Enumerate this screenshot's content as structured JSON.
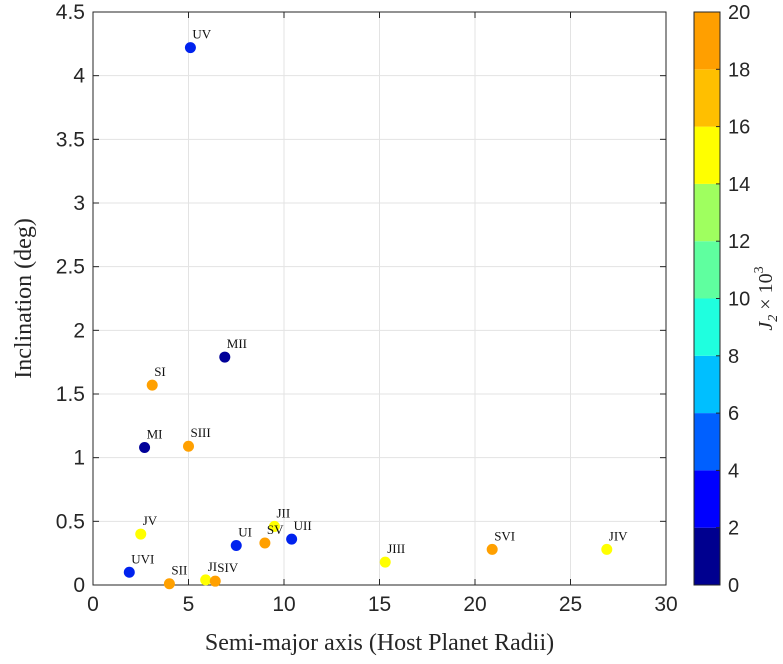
{
  "chart_data": {
    "type": "scatter",
    "xlabel": "Semi-major axis (Host Planet Radii)",
    "ylabel": "Inclination (deg)",
    "xlim": [
      0,
      30
    ],
    "ylim": [
      0,
      4.5
    ],
    "xticks": [
      "0",
      "5",
      "10",
      "15",
      "20",
      "25",
      "30"
    ],
    "yticks": [
      "0",
      "0.5",
      "1",
      "1.5",
      "2",
      "2.5",
      "3",
      "3.5",
      "4",
      "4.5"
    ],
    "grid": true,
    "colorbar": {
      "label_base": "J",
      "label_sub": "2",
      "label_times": " × 10",
      "label_sup": "3",
      "range": [
        0,
        20
      ],
      "ticks": [
        "0",
        "2",
        "4",
        "6",
        "8",
        "10",
        "12",
        "14",
        "16",
        "18",
        "20"
      ],
      "levels": [
        "#00008f",
        "#0000ff",
        "#0060ff",
        "#00bfff",
        "#1fffdf",
        "#5fff9f",
        "#9fff5f",
        "#ffff00",
        "#ffbf00",
        "#ff9f00",
        "#ff5f00"
      ],
      "bands": [
        {
          "from": 0,
          "to": 2,
          "color": "#00008f"
        },
        {
          "from": 2,
          "to": 4,
          "color": "#0000ff"
        },
        {
          "from": 4,
          "to": 6,
          "color": "#0050ff"
        },
        {
          "from": 6,
          "to": 8,
          "color": "#00a0ff"
        },
        {
          "from": 8,
          "to": 10,
          "color": "#00efff"
        },
        {
          "from": 10,
          "to": 12,
          "color": "#40ffbf"
        },
        {
          "from": 12,
          "to": 14,
          "color": "#8fff6f"
        },
        {
          "from": 14,
          "to": 16,
          "color": "#dfff20"
        },
        {
          "from": 16,
          "to": 18,
          "color": "#ffff00"
        },
        {
          "from": 18,
          "to": 20,
          "color": "#ffa500"
        },
        {
          "from": 20,
          "to": 20,
          "color": "#ff5500"
        }
      ]
    },
    "points": [
      {
        "label": "UV",
        "x": 5.1,
        "y": 4.22,
        "color": "#0022ee"
      },
      {
        "label": "MII",
        "x": 6.9,
        "y": 1.79,
        "color": "#000099"
      },
      {
        "label": "SI",
        "x": 3.1,
        "y": 1.57,
        "color": "#ffa000"
      },
      {
        "label": "MI",
        "x": 2.7,
        "y": 1.08,
        "color": "#000099"
      },
      {
        "label": "SIII",
        "x": 5.0,
        "y": 1.09,
        "color": "#ffa000"
      },
      {
        "label": "JV",
        "x": 2.5,
        "y": 0.4,
        "color": "#ffff00"
      },
      {
        "label": "JII",
        "x": 9.5,
        "y": 0.46,
        "color": "#ffff00"
      },
      {
        "label": "SV",
        "x": 9.0,
        "y": 0.33,
        "color": "#ffa000"
      },
      {
        "label": "UI",
        "x": 7.5,
        "y": 0.31,
        "color": "#0022ee"
      },
      {
        "label": "UII",
        "x": 10.4,
        "y": 0.36,
        "color": "#0022ee"
      },
      {
        "label": "UVI",
        "x": 1.9,
        "y": 0.1,
        "color": "#0022ee"
      },
      {
        "label": "SII",
        "x": 4.0,
        "y": 0.01,
        "color": "#ffa000"
      },
      {
        "label": "JI",
        "x": 5.9,
        "y": 0.04,
        "color": "#ffff00"
      },
      {
        "label": "SIV",
        "x": 6.4,
        "y": 0.03,
        "color": "#ffa000"
      },
      {
        "label": "JIII",
        "x": 15.3,
        "y": 0.18,
        "color": "#ffff00"
      },
      {
        "label": "SVI",
        "x": 20.9,
        "y": 0.28,
        "color": "#ffa000"
      },
      {
        "label": "JIV",
        "x": 26.9,
        "y": 0.28,
        "color": "#ffff00"
      }
    ]
  }
}
